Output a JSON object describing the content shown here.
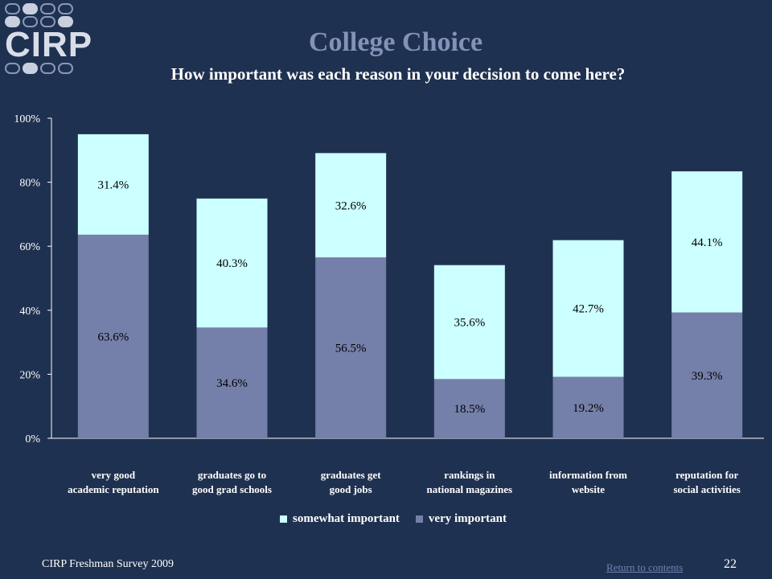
{
  "header": {
    "logo_text": "CIRP",
    "title": "College Choice",
    "subtitle": "How important was each reason in your decision to come here?"
  },
  "chart_data": {
    "type": "bar",
    "stacked": true,
    "categories": [
      [
        "very good",
        "academic reputation"
      ],
      [
        "graduates go to",
        "good grad schools"
      ],
      [
        "graduates get",
        "good jobs"
      ],
      [
        "rankings in",
        "national magazines"
      ],
      [
        "information from",
        "website"
      ],
      [
        "reputation for",
        "social activities"
      ]
    ],
    "series": [
      {
        "name": "very important",
        "values": [
          63.6,
          34.6,
          56.5,
          18.5,
          19.2,
          39.3
        ],
        "color": "#7580aa"
      },
      {
        "name": "somewhat important",
        "values": [
          31.4,
          40.3,
          32.6,
          35.6,
          42.7,
          44.1
        ],
        "color": "#ccffff"
      }
    ],
    "data_labels": [
      [
        "63.6%",
        "34.6%",
        "56.5%",
        "18.5%",
        "19.2%",
        "39.3%"
      ],
      [
        "31.4%",
        "40.3%",
        "32.6%",
        "35.6%",
        "42.7%",
        "44.1%"
      ]
    ],
    "y_ticks": [
      "0%",
      "20%",
      "40%",
      "60%",
      "80%",
      "100%"
    ],
    "ylim": [
      0,
      100
    ],
    "legend_position": "bottom",
    "legend_order": [
      "somewhat important",
      "very important"
    ]
  },
  "footer": {
    "survey": "CIRP Freshman Survey 2009",
    "link": "Return to contents",
    "page": "22"
  },
  "colors": {
    "background": "#1f3150",
    "title": "#8392b8",
    "very_important": "#7580aa",
    "somewhat_important": "#ccffff"
  }
}
